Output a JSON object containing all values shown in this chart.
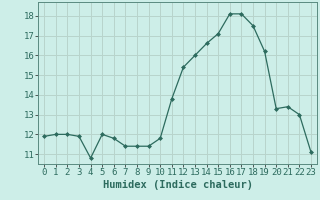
{
  "x": [
    0,
    1,
    2,
    3,
    4,
    5,
    6,
    7,
    8,
    9,
    10,
    11,
    12,
    13,
    14,
    15,
    16,
    17,
    18,
    19,
    20,
    21,
    22,
    23
  ],
  "y": [
    11.9,
    12.0,
    12.0,
    11.9,
    10.8,
    12.0,
    11.8,
    11.4,
    11.4,
    11.4,
    11.8,
    13.8,
    15.4,
    16.0,
    16.6,
    17.1,
    18.1,
    18.1,
    17.5,
    16.2,
    13.3,
    13.4,
    13.0,
    11.1
  ],
  "line_color": "#2d6b5e",
  "marker": "D",
  "marker_size": 2.0,
  "bg_color": "#cdeee8",
  "grid_color_major": "#b8d4cc",
  "xlabel": "Humidex (Indice chaleur)",
  "ylim": [
    10.5,
    18.7
  ],
  "xlim": [
    -0.5,
    23.5
  ],
  "yticks": [
    11,
    12,
    13,
    14,
    15,
    16,
    17,
    18
  ],
  "xticks": [
    0,
    1,
    2,
    3,
    4,
    5,
    6,
    7,
    8,
    9,
    10,
    11,
    12,
    13,
    14,
    15,
    16,
    17,
    18,
    19,
    20,
    21,
    22,
    23
  ],
  "xlabel_fontsize": 7.5,
  "tick_fontsize": 6.5
}
